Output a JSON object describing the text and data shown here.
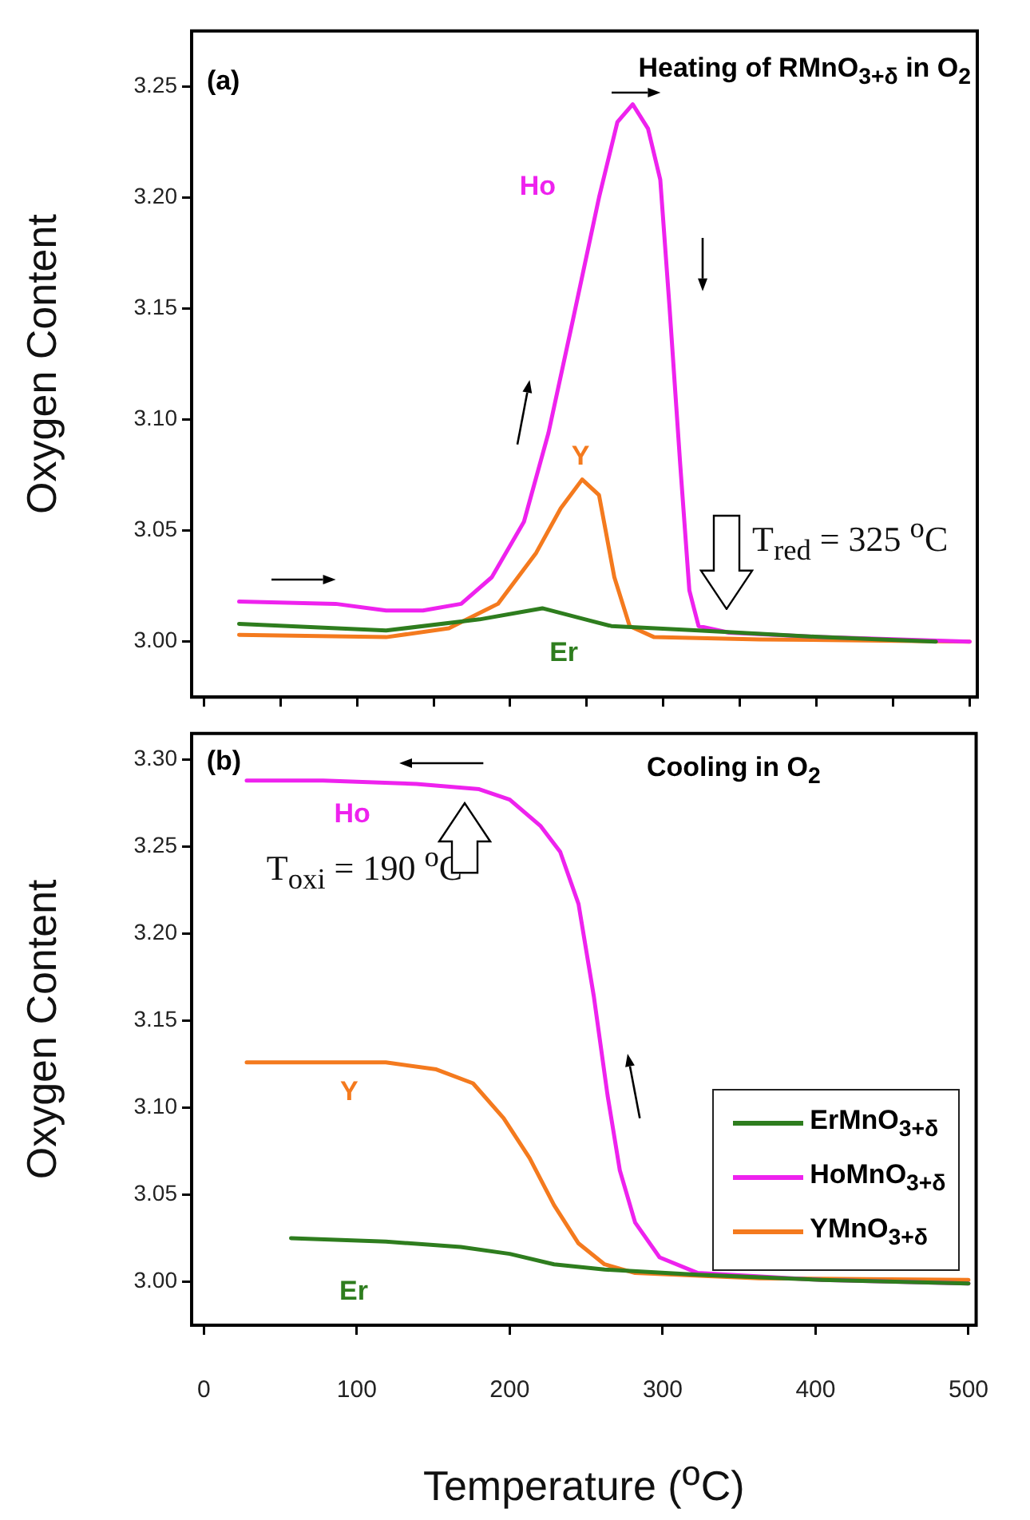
{
  "chart_data": [
    {
      "type": "line",
      "title": "(a)",
      "subtitle": "Heating of RMnO$_{3+δ}$ in O$_{2}$",
      "ylabel": "Oxygen Content",
      "xlim": [
        -8,
        505
      ],
      "xticks": [
        {
          "value": 0,
          "label": null
        },
        {
          "value": 50,
          "label": null
        },
        {
          "value": 100,
          "label": null
        },
        {
          "value": 150,
          "label": null
        },
        {
          "value": 200,
          "label": null
        },
        {
          "value": 250,
          "label": null
        },
        {
          "value": 300,
          "label": null
        },
        {
          "value": 350,
          "label": null
        },
        {
          "value": 400,
          "label": null
        },
        {
          "value": 450,
          "label": null
        },
        {
          "value": 500,
          "label": null
        }
      ],
      "ylim": [
        2.975,
        3.275
      ],
      "yticks": [
        {
          "value": 3,
          "label": "3.00"
        },
        {
          "value": 3.05,
          "label": "3.05"
        },
        {
          "value": 3.1,
          "label": "3.10"
        },
        {
          "value": 3.15,
          "label": "3.15"
        },
        {
          "value": 3.2,
          "label": "3.20"
        },
        {
          "value": 3.25,
          "label": "3.25"
        }
      ],
      "tick_labels": "y",
      "legend": false,
      "series": [
        {
          "color": "#2e7d1e",
          "x": [
            23,
            119,
            180,
            221,
            249,
            266,
            323,
            404,
            478
          ],
          "values": [
            3.008,
            3.005,
            3.01,
            3.015,
            3.01,
            3.007,
            3.005,
            3.002,
            3.0
          ]
        },
        {
          "color": "#ee22ee",
          "x": [
            23,
            86,
            119,
            143,
            168,
            188,
            209,
            225,
            241,
            258,
            270,
            280,
            290,
            298,
            304,
            311,
            317,
            323,
            343,
            404,
            500
          ],
          "values": [
            3.018,
            3.017,
            3.014,
            3.014,
            3.017,
            3.029,
            3.054,
            3.094,
            3.145,
            3.2,
            3.234,
            3.242,
            3.231,
            3.208,
            3.151,
            3.08,
            3.023,
            3.007,
            3.004,
            3.002,
            3.0
          ]
        },
        {
          "color": "#f47a1e",
          "x": [
            23,
            119,
            160,
            192,
            217,
            233,
            247,
            258,
            268,
            278,
            294,
            363,
            500
          ],
          "values": [
            3.003,
            3.002,
            3.006,
            3.017,
            3.04,
            3.06,
            3.073,
            3.066,
            3.029,
            3.007,
            3.002,
            3.001,
            3.0
          ]
        }
      ],
      "annotations": [
        "Ho",
        "Y",
        "Er",
        "T$_{red}$ = 325 $^{o}$C"
      ]
    },
    {
      "type": "line",
      "title": "(b)",
      "subtitle": "Cooling in O$_{2}$",
      "xlabel": "Temperature ($^{o}$C)",
      "ylabel": "Oxygen Content",
      "xlim": [
        -8,
        505
      ],
      "xticks": [
        0,
        100,
        200,
        300,
        400,
        500
      ],
      "ylim": [
        2.975,
        3.315
      ],
      "yticks": [
        {
          "value": 3,
          "label": "3.00"
        },
        {
          "value": 3.05,
          "label": "3.05"
        },
        {
          "value": 3.1,
          "label": "3.10"
        },
        {
          "value": 3.15,
          "label": "3.15"
        },
        {
          "value": 3.2,
          "label": "3.20"
        },
        {
          "value": 3.25,
          "label": "3.25"
        },
        {
          "value": 3.3,
          "label": "3.30"
        }
      ],
      "legend": "right",
      "series": [
        {
          "name": "ErMnO$_{3+δ}$",
          "color": "#2e7d1e",
          "x": [
            57,
            119,
            168,
            200,
            229,
            262,
            323,
            404,
            500
          ],
          "values": [
            3.025,
            3.023,
            3.02,
            3.016,
            3.01,
            3.007,
            3.004,
            3.001,
            2.999
          ]
        },
        {
          "name": "HoMnO$_{3+δ}$",
          "color": "#ee22ee",
          "x": [
            28,
            78,
            139,
            180,
            200,
            220,
            233,
            245,
            255,
            264,
            272,
            282,
            298,
            323,
            404,
            500
          ],
          "values": [
            3.288,
            3.288,
            3.286,
            3.283,
            3.277,
            3.262,
            3.247,
            3.217,
            3.164,
            3.107,
            3.064,
            3.034,
            3.014,
            3.005,
            3.001,
            2.999
          ]
        },
        {
          "name": "YMnO$_{3+δ}$",
          "color": "#f47a1e",
          "x": [
            28,
            119,
            152,
            176,
            196,
            213,
            229,
            245,
            262,
            282,
            363,
            500
          ],
          "values": [
            3.126,
            3.126,
            3.122,
            3.114,
            3.094,
            3.071,
            3.044,
            3.022,
            3.01,
            3.005,
            3.002,
            3.001
          ]
        }
      ],
      "annotations": [
        "Ho",
        "Y",
        "Er",
        "T$_{oxi}$ = 190 $^{o}$C"
      ]
    }
  ]
}
